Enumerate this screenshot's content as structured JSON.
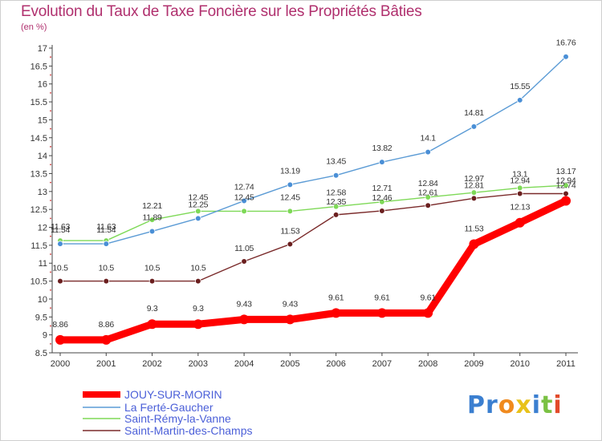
{
  "title": "Evolution du Taux de Taxe Foncière sur les Propriétés Bâties",
  "subtitle": "(en %)",
  "logo": "Proxiti",
  "chart_data": {
    "type": "line",
    "ylim": [
      8.5,
      17
    ],
    "yticks": [
      8.5,
      9,
      9.5,
      10,
      10.5,
      11,
      11.5,
      12,
      12.5,
      13,
      13.5,
      14,
      14.5,
      15,
      15.5,
      16,
      16.5,
      17
    ],
    "x": [
      "2000",
      "2001",
      "2002",
      "2003",
      "2004",
      "2005",
      "2006",
      "2007",
      "2008",
      "2009",
      "2010",
      "2011"
    ],
    "legend_position": "bottom-left",
    "grid": false,
    "series": [
      {
        "name": "JOUY-SUR-MORIN",
        "color": "#ff0000",
        "values": [
          8.86,
          8.86,
          9.3,
          9.3,
          9.43,
          9.43,
          9.61,
          9.61,
          9.61,
          11.53,
          12.13,
          12.74
        ]
      },
      {
        "name": "La Ferté-Gaucher",
        "color": "#5b9bd5",
        "values": [
          11.54,
          11.54,
          11.89,
          12.25,
          12.74,
          13.19,
          13.45,
          13.82,
          14.1,
          14.81,
          15.55,
          16.76
        ]
      },
      {
        "name": "Saint-Rémy-la-Vanne",
        "color": "#7ed957",
        "values": [
          11.63,
          11.63,
          12.21,
          12.45,
          12.45,
          12.45,
          12.58,
          12.71,
          12.84,
          12.97,
          13.1,
          13.17
        ]
      },
      {
        "name": "Saint-Martin-des-Champs",
        "color": "#7a2a2a",
        "values": [
          10.5,
          10.5,
          10.5,
          10.5,
          11.05,
          11.53,
          12.35,
          12.46,
          12.61,
          12.81,
          12.94,
          12.94
        ]
      }
    ],
    "labels": [
      [
        "8.86",
        "8.86",
        "9.3",
        "9.3",
        "9.43",
        "9.43",
        "9.61",
        "9.61",
        "9.61",
        "11.53",
        "12.13",
        "12.74"
      ],
      [
        "11.54",
        "11.54",
        "11.89",
        "12.25",
        "12.74",
        "13.19",
        "13.45",
        "13.82",
        "14.1",
        "14.81",
        "15.55",
        "16.76"
      ],
      [
        "11.63",
        "11.63",
        "12.21",
        "12.45",
        "12.45",
        "12.45",
        "12.58",
        "12.71",
        "12.84",
        "12.97",
        "13.1",
        "13.17"
      ],
      [
        "10.5",
        "10.5",
        "10.5",
        "10.5",
        "11.05",
        "11.53",
        "12.35",
        "12.46",
        "12.61",
        "12.81",
        "12.94",
        "12.94"
      ]
    ]
  }
}
